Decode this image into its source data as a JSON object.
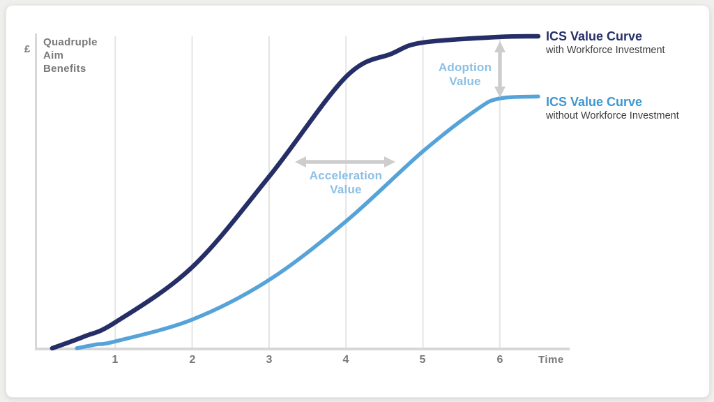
{
  "page": {
    "background": "#efefed",
    "card_background": "#ffffff"
  },
  "y_axis": {
    "currency_label": "£",
    "title": "Quadruple\nAim\nBenefits"
  },
  "x_axis": {
    "label": "Time",
    "tick_labels": [
      "1",
      "2",
      "3",
      "4",
      "5",
      "6"
    ]
  },
  "annotations": {
    "adoption": {
      "label": "Adoption\nValue",
      "color": "#8abfe6",
      "arrow": "vertical-double-arrow between the two curves at time 6"
    },
    "acceleration": {
      "label": "Acceleration\nValue",
      "color": "#8abfe6",
      "arrow": "horizontal-double-arrow between the two curves mid-rise"
    }
  },
  "legend": [
    {
      "title": "ICS Value Curve",
      "subtitle": "with Workforce Investment",
      "color": "#272f6a"
    },
    {
      "title": "ICS Value Curve",
      "subtitle": "without Workforce Investment",
      "color": "#3e96d2"
    }
  ],
  "chart_data": {
    "type": "line",
    "title": "",
    "xlabel": "Time",
    "ylabel": "£ (Quadruple Aim Benefits)",
    "x_ticks": [
      "1",
      "2",
      "3",
      "4",
      "5",
      "6"
    ],
    "x_range": [
      0,
      6.9
    ],
    "y_range_relative": [
      0,
      1
    ],
    "grid": "vertical-gridlines-only",
    "legend_position": "right",
    "curve_shape": "sigmoid (S-curve)",
    "series": [
      {
        "name": "ICS Value Curve with Workforce Investment",
        "color": "#252e66",
        "stroke_width": 6.5,
        "x": [
          0.18,
          0.6,
          1,
          2,
          3,
          4,
          4.6,
          5,
          6,
          6.5
        ],
        "y_rel": [
          0,
          0.038,
          0.083,
          0.26,
          0.55,
          0.87,
          0.945,
          0.98,
          0.998,
          1.0
        ]
      },
      {
        "name": "ICS Value Curve without Workforce Investment",
        "color": "#55a3d9",
        "stroke_width": 5.5,
        "x": [
          0.5,
          0.75,
          1,
          2,
          3,
          4,
          5,
          5.7,
          6,
          6.5
        ],
        "y_rel": [
          0,
          0.012,
          0.022,
          0.092,
          0.219,
          0.407,
          0.631,
          0.765,
          0.801,
          0.807
        ]
      }
    ],
    "arrow_color": "#cdcdcd",
    "axis_color": "#d7d7d7",
    "gridline_color": "#e4e4e4"
  }
}
